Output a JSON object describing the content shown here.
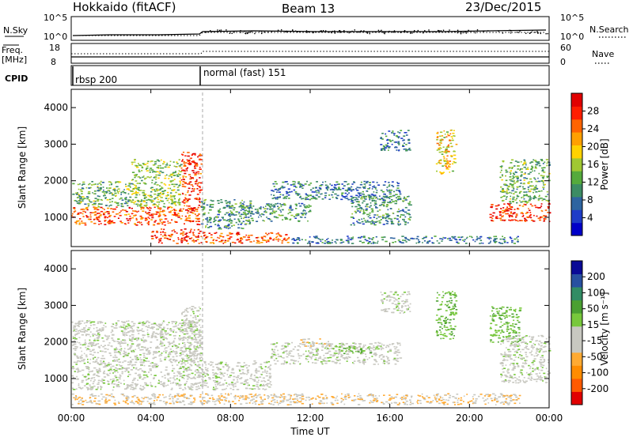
{
  "header": {
    "station": "Hokkaido (fitACF)",
    "beam": "Beam 13",
    "date": "23/Dec/2015"
  },
  "top_panels": {
    "nsky_label": "N.Sky",
    "nsky_ticks": [
      "10^5",
      "10^0"
    ],
    "nsearch_label": "N.Search",
    "nsearch_ticks": [
      "10^5",
      "10^0"
    ],
    "freq_label_1": "Freq.",
    "freq_label_2": "[MHz]",
    "freq_ticks": [
      "18",
      "8"
    ],
    "nave_label": "Nave",
    "nave_ticks": [
      "60",
      "0"
    ],
    "cpid_label": "CPID",
    "cpid_segments": [
      {
        "name": "rbsp 200",
        "start_hour": 0
      },
      {
        "name": "normal (fast) 151",
        "start_hour": 6.5
      }
    ]
  },
  "chart_data": [
    {
      "type": "heatmap",
      "name": "power",
      "ylabel": "Slant Range [km]",
      "yticks": [
        "4000",
        "3000",
        "2000",
        "1000"
      ],
      "ylim": [
        200,
        4500
      ],
      "xlim_hours": [
        0,
        24
      ],
      "colorbar": {
        "label": "Power [dB]",
        "ticks": [
          "28",
          "24",
          "20",
          "16",
          "12",
          "8",
          "4"
        ],
        "range": [
          0,
          30
        ],
        "colors": [
          "#0000c8",
          "#1e3cc8",
          "#2e64a0",
          "#3c8c64",
          "#55aa3c",
          "#a0c832",
          "#ffd200",
          "#ffa000",
          "#ff6400",
          "#ff1e00",
          "#e10000"
        ]
      },
      "regions": [
        {
          "t0": 0.0,
          "t1": 6.5,
          "r0": 800,
          "r1": 1300,
          "level": 24
        },
        {
          "t0": 0.0,
          "t1": 3.0,
          "r0": 1300,
          "r1": 2000,
          "level": 12
        },
        {
          "t0": 3.0,
          "t1": 5.5,
          "r0": 1300,
          "r1": 2600,
          "level": 14
        },
        {
          "t0": 5.5,
          "t1": 6.5,
          "r0": 1200,
          "r1": 2800,
          "level": 26
        },
        {
          "t0": 4.0,
          "t1": 6.5,
          "r0": 300,
          "r1": 700,
          "level": 26
        },
        {
          "t0": 6.5,
          "t1": 11.0,
          "r0": 300,
          "r1": 600,
          "level": 24
        },
        {
          "t0": 6.5,
          "t1": 9.0,
          "r0": 700,
          "r1": 1500,
          "level": 10
        },
        {
          "t0": 11.0,
          "t1": 22.5,
          "r0": 300,
          "r1": 500,
          "level": 8
        },
        {
          "t0": 8.5,
          "t1": 12.0,
          "r0": 900,
          "r1": 1400,
          "level": 10
        },
        {
          "t0": 10.0,
          "t1": 16.5,
          "r0": 1500,
          "r1": 2000,
          "level": 8
        },
        {
          "t0": 14.0,
          "t1": 17.0,
          "r0": 800,
          "r1": 1600,
          "level": 10
        },
        {
          "t0": 15.5,
          "t1": 17.0,
          "r0": 2800,
          "r1": 3400,
          "level": 8
        },
        {
          "t0": 18.3,
          "t1": 19.3,
          "r0": 2200,
          "r1": 3400,
          "level": 18
        },
        {
          "t0": 21.0,
          "t1": 24.0,
          "r0": 900,
          "r1": 1400,
          "level": 26
        },
        {
          "t0": 21.5,
          "t1": 24.0,
          "r0": 1400,
          "r1": 2600,
          "level": 12
        }
      ]
    },
    {
      "type": "heatmap",
      "name": "velocity",
      "ylabel": "Slant Range [km]",
      "yticks": [
        "4000",
        "3000",
        "2000",
        "1000"
      ],
      "ylim": [
        200,
        4500
      ],
      "xlim_hours": [
        0,
        24
      ],
      "xticks": [
        "00:00",
        "04:00",
        "08:00",
        "12:00",
        "16:00",
        "20:00",
        "00:00"
      ],
      "xlabel": "Time UT",
      "colorbar": {
        "label": "Velocity [m s⁻¹]",
        "ticks": [
          "200",
          "100",
          "50",
          "15",
          "-15",
          "-50",
          "-100",
          "-200"
        ],
        "range": [
          -250,
          250
        ],
        "colors": [
          "#e10000",
          "#ff5a00",
          "#ff8c00",
          "#ffaa32",
          "#c8c8c0",
          "#c8c8c0",
          "#78c83c",
          "#4ba032",
          "#328c64",
          "#2850a0",
          "#0a0a96"
        ]
      },
      "regions": [
        {
          "t0": 0.0,
          "t1": 6.5,
          "r0": 700,
          "r1": 2600,
          "vel": 0
        },
        {
          "t0": 5.5,
          "t1": 6.5,
          "r0": 1200,
          "r1": 3000,
          "vel": 0
        },
        {
          "t0": 6.5,
          "t1": 10.0,
          "r0": 700,
          "r1": 1500,
          "vel": 0
        },
        {
          "t0": 0.0,
          "t1": 22.5,
          "r0": 300,
          "r1": 600,
          "vel": -60
        },
        {
          "t0": 10.0,
          "t1": 16.5,
          "r0": 1400,
          "r1": 2000,
          "vel": 0
        },
        {
          "t0": 11.5,
          "t1": 13.0,
          "r0": 1900,
          "r1": 2100,
          "vel": -60
        },
        {
          "t0": 13.0,
          "t1": 15.0,
          "r0": 1700,
          "r1": 1900,
          "vel": 60
        },
        {
          "t0": 15.5,
          "t1": 17.0,
          "r0": 2800,
          "r1": 3400,
          "vel": 0
        },
        {
          "t0": 18.3,
          "t1": 19.3,
          "r0": 2100,
          "r1": 3400,
          "vel": 60
        },
        {
          "t0": 21.0,
          "t1": 22.5,
          "r0": 2000,
          "r1": 3000,
          "vel": 60
        },
        {
          "t0": 21.5,
          "t1": 24.0,
          "r0": 900,
          "r1": 2200,
          "vel": 0
        }
      ]
    }
  ]
}
